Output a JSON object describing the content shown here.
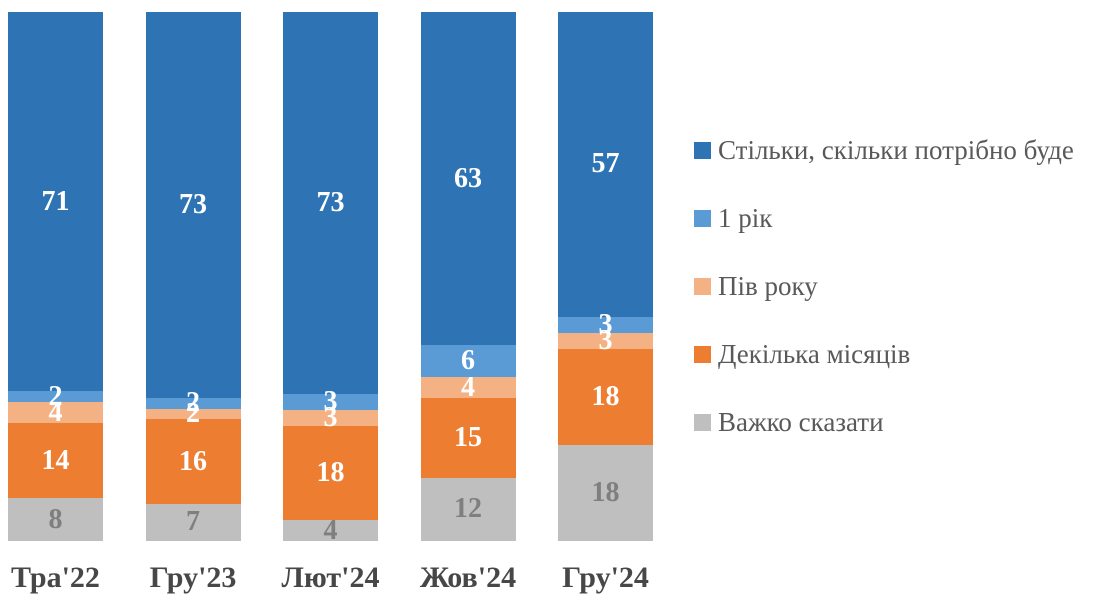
{
  "chart_data": {
    "type": "bar",
    "variant": "stacked-column-100",
    "title": "",
    "xlabel": "",
    "ylabel": "",
    "ylim": [
      0,
      100
    ],
    "grid": false,
    "legend_position": "right",
    "categories": [
      "Тра'22",
      "Гру'23",
      "Лют'24",
      "Жов'24",
      "Гру'24"
    ],
    "series": [
      {
        "name": "Стільки, скільки потрібно буде",
        "color": "#2E74B5",
        "label_color": "#FFFFFF",
        "values": [
          71,
          73,
          73,
          63,
          57
        ]
      },
      {
        "name": "1 рік",
        "color": "#5B9BD5",
        "label_color": "#FFFFFF",
        "values": [
          2,
          2,
          3,
          6,
          3
        ]
      },
      {
        "name": "Пів року",
        "color": "#F4B183",
        "label_color": "#FFFFFF",
        "values": [
          4,
          2,
          3,
          4,
          3
        ]
      },
      {
        "name": "Декілька місяців",
        "color": "#ED7D31",
        "label_color": "#FFFFFF",
        "values": [
          14,
          16,
          18,
          15,
          18
        ]
      },
      {
        "name": "Важко сказати",
        "color": "#BFBFBF",
        "label_color": "#7F7F7F",
        "values": [
          8,
          7,
          4,
          12,
          18
        ]
      }
    ]
  },
  "layout_colors": {
    "background": "#FFFFFF",
    "axis_label_color": "#474747",
    "legend_text_color": "#595959"
  }
}
